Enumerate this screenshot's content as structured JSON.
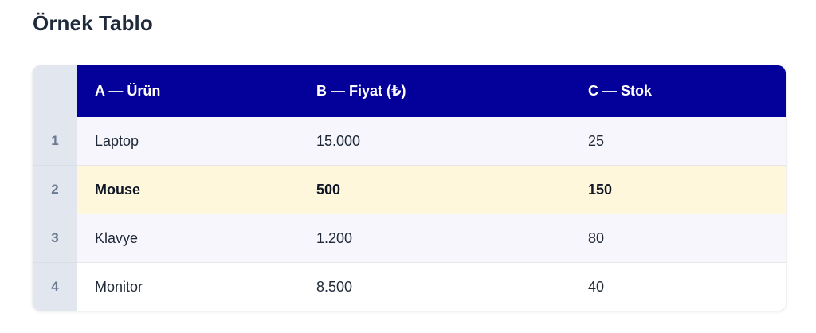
{
  "title": "Örnek Tablo",
  "table": {
    "columns": [
      "A — Ürün",
      "B — Fiyat (₺)",
      "C — Stok"
    ],
    "rows": [
      {
        "index": "1",
        "cells": [
          "Laptop",
          "15.000",
          "25"
        ],
        "selected": false
      },
      {
        "index": "2",
        "cells": [
          "Mouse",
          "500",
          "150"
        ],
        "selected": true
      },
      {
        "index": "3",
        "cells": [
          "Klavye",
          "1.200",
          "80"
        ],
        "selected": false
      },
      {
        "index": "4",
        "cells": [
          "Monitor",
          "8.500",
          "40"
        ],
        "selected": false
      }
    ]
  },
  "colors": {
    "header_bg": "#04009a",
    "header_text": "#ffffff",
    "row_index_bg": "#e2e6ee",
    "selected_row_bg": "#fef7dc",
    "odd_row_bg": "#f7f6fd"
  }
}
